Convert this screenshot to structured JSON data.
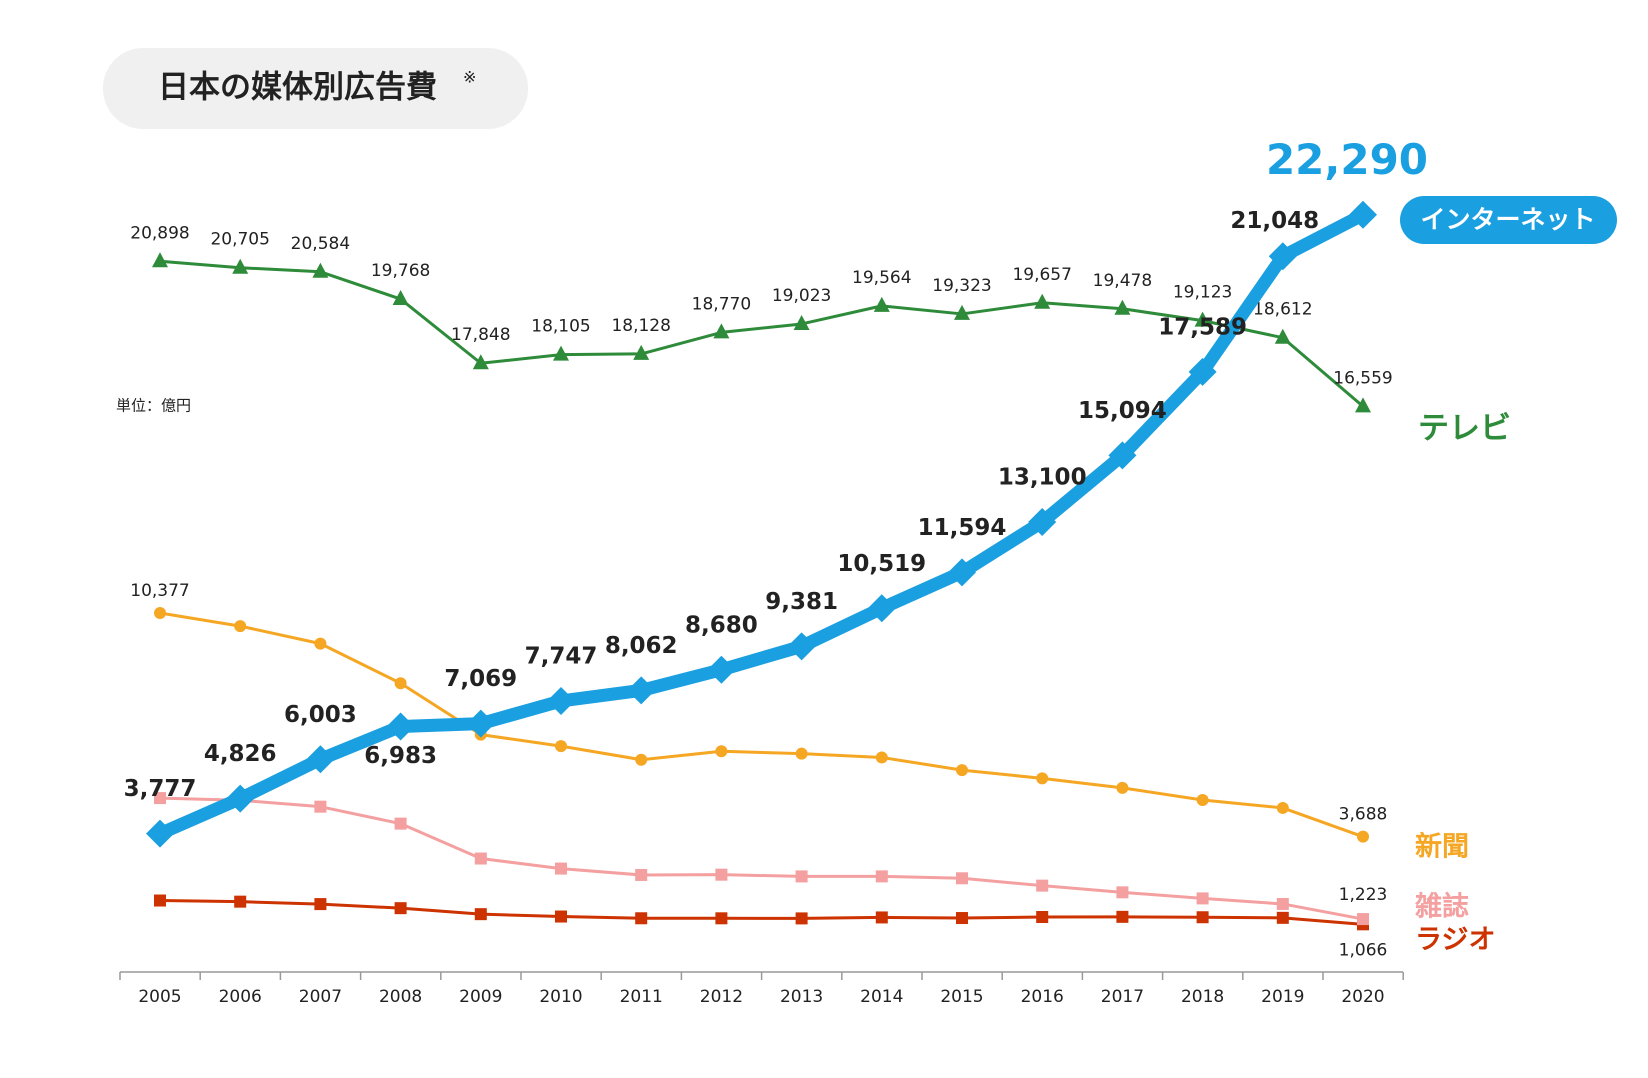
{
  "chart_data": {
    "type": "line",
    "title": "日本の媒体別広告費",
    "title_note": "※",
    "unit_label": "単位：億円",
    "categories": [
      "2005",
      "2006",
      "2007",
      "2008",
      "2009",
      "2010",
      "2011",
      "2012",
      "2013",
      "2014",
      "2015",
      "2016",
      "2017",
      "2018",
      "2019",
      "2020"
    ],
    "ylim": [
      -360,
      23000
    ],
    "series": [
      {
        "name": "インターネット",
        "color": "#1a9fe0",
        "marker": "diamond",
        "values": [
          3777,
          4826,
          6003,
          6983,
          7069,
          7747,
          8062,
          8680,
          9381,
          10519,
          11594,
          13100,
          15094,
          17589,
          21048,
          22290
        ],
        "value_labels": [
          "3,777",
          "4,826",
          "6,003",
          "6,983",
          "7,069",
          "7,747",
          "8,062",
          "8,680",
          "9,381",
          "10,519",
          "11,594",
          "13,100",
          "15,094",
          "17,589",
          "21,048",
          "22,290"
        ]
      },
      {
        "name": "テレビ",
        "color": "#2e8b3a",
        "marker": "triangle",
        "values": [
          20898,
          20705,
          20584,
          19768,
          17848,
          18105,
          18128,
          18770,
          19023,
          19564,
          19323,
          19657,
          19478,
          19123,
          18612,
          16559
        ],
        "value_labels": [
          "20,898",
          "20,705",
          "20,584",
          "19,768",
          "17,848",
          "18,105",
          "18,128",
          "18,770",
          "19,023",
          "19,564",
          "19,323",
          "19,657",
          "19,478",
          "19,123",
          "18,612",
          "16,559"
        ]
      },
      {
        "name": "新聞",
        "color": "#f5a623",
        "marker": "circle",
        "values": [
          10377,
          9986,
          9462,
          8276,
          6739,
          6396,
          5990,
          6242,
          6170,
          6057,
          5679,
          5431,
          5147,
          4784,
          4547,
          3688
        ],
        "value_labels": [
          "10,377",
          null,
          null,
          null,
          null,
          null,
          null,
          null,
          null,
          null,
          null,
          null,
          null,
          null,
          null,
          "3,688"
        ]
      },
      {
        "name": "雑誌",
        "color": "#f4a0a0",
        "marker": "square",
        "values": [
          4842,
          4777,
          4585,
          4078,
          3034,
          2733,
          2542,
          2551,
          2499,
          2500,
          2443,
          2223,
          2023,
          1841,
          1675,
          1223
        ],
        "value_labels": [
          null,
          null,
          null,
          null,
          null,
          null,
          null,
          null,
          null,
          null,
          null,
          null,
          null,
          null,
          null,
          "1,223"
        ]
      },
      {
        "name": "ラジオ",
        "color": "#cc3300",
        "marker": "square",
        "values": [
          1778,
          1744,
          1671,
          1549,
          1370,
          1299,
          1247,
          1246,
          1243,
          1272,
          1254,
          1285,
          1290,
          1278,
          1260,
          1066
        ],
        "value_labels": [
          null,
          null,
          null,
          null,
          null,
          null,
          null,
          null,
          null,
          null,
          null,
          null,
          null,
          null,
          null,
          "1,066"
        ]
      }
    ]
  }
}
